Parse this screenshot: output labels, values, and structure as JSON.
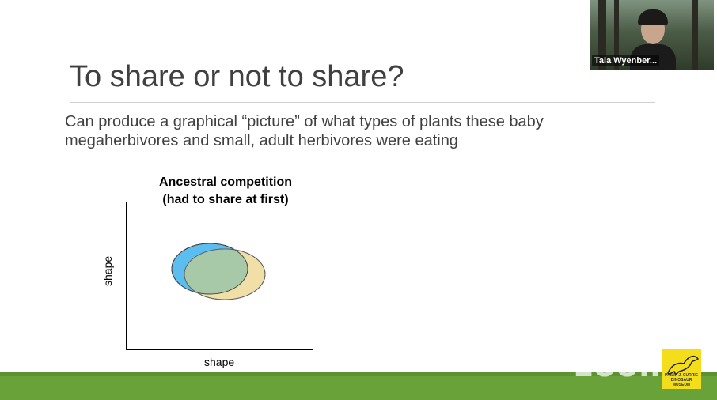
{
  "slide": {
    "title": "To share or not to share?",
    "body_lines": [
      "Can produce a graphical “picture” of what types of plants these baby",
      "megaherbivores and small, adult herbivores were eating"
    ]
  },
  "figure": {
    "title_lines": [
      "Ancestral competition",
      "(had to share at first)"
    ],
    "xlabel": "shape",
    "ylabel": "shape",
    "colors": {
      "ellipse_blue": "#5bbdf0",
      "ellipse_tan": "#f0e0a8",
      "overlap": "#a8c9a8"
    }
  },
  "video": {
    "participant_name": "Taia Wyenber..."
  },
  "watermark": {
    "text": "zoom"
  },
  "logo": {
    "text_lines": [
      "PHILIP J. CURRIE",
      "DINOSAUR MUSEUM"
    ]
  }
}
